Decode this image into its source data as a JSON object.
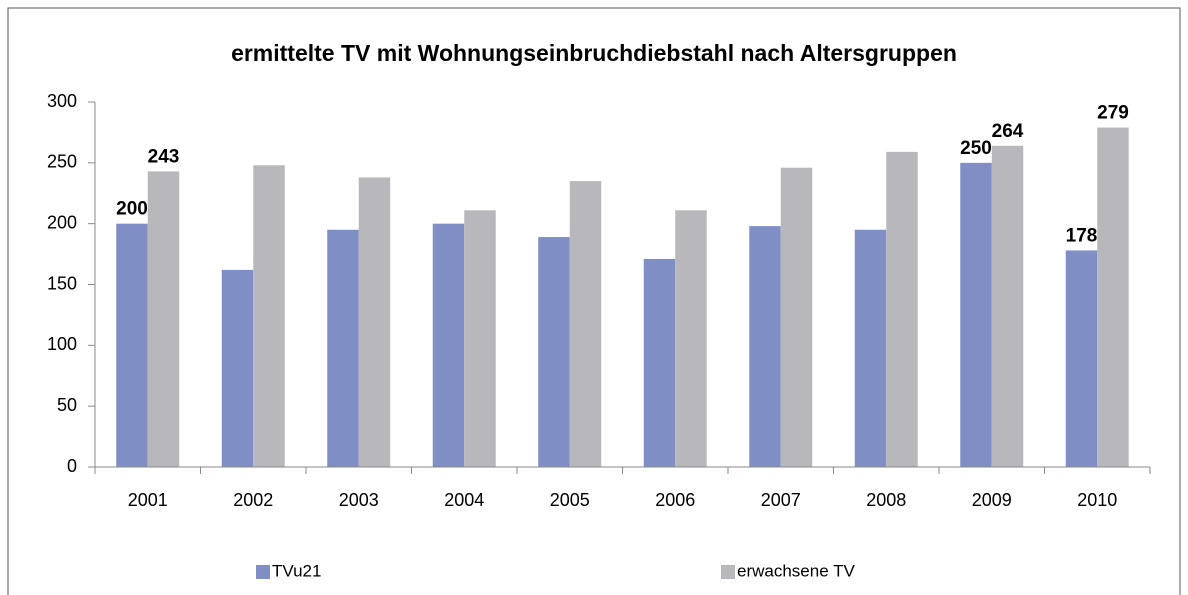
{
  "chart_data": {
    "type": "bar",
    "title": "ermittelte TV mit Wohnungseinbruchdiebstahl nach Altersgruppen",
    "categories": [
      "2001",
      "2002",
      "2003",
      "2004",
      "2005",
      "2006",
      "2007",
      "2008",
      "2009",
      "2010"
    ],
    "series": [
      {
        "name": "TVu21",
        "color": "#7f8fc6",
        "values": [
          200,
          162,
          195,
          200,
          189,
          171,
          198,
          195,
          250,
          178
        ],
        "value_labels": [
          200,
          null,
          null,
          null,
          null,
          null,
          null,
          null,
          250,
          178
        ]
      },
      {
        "name": "erwachsene TV",
        "color": "#b8b8bc",
        "values": [
          243,
          248,
          238,
          211,
          235,
          211,
          246,
          259,
          264,
          279
        ],
        "value_labels": [
          243,
          null,
          null,
          null,
          null,
          null,
          null,
          null,
          264,
          279
        ]
      }
    ],
    "ylim": [
      0,
      300
    ],
    "yticks": [
      0,
      50,
      100,
      150,
      200,
      250,
      300
    ],
    "grid": false,
    "legend": "bottom"
  }
}
